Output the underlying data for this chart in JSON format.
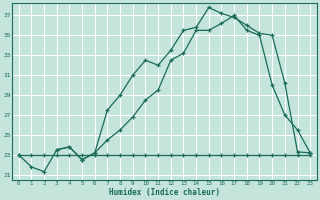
{
  "xlabel": "Humidex (Indice chaleur)",
  "bg_color": "#c4e4dc",
  "line_color": "#1a6b5a",
  "grid_color": "#ffffff",
  "xlim": [
    -0.5,
    23.5
  ],
  "ylim": [
    20.5,
    38.2
  ],
  "xticks": [
    0,
    1,
    2,
    3,
    4,
    5,
    6,
    7,
    8,
    9,
    10,
    11,
    12,
    13,
    14,
    15,
    16,
    17,
    18,
    19,
    20,
    21,
    22,
    23
  ],
  "yticks": [
    21,
    23,
    25,
    27,
    29,
    31,
    33,
    35,
    37
  ],
  "line_flat_x": [
    0,
    1,
    2,
    3,
    4,
    5,
    6,
    7,
    8,
    9,
    10,
    11,
    12,
    13,
    14,
    15,
    16,
    17,
    18,
    19,
    20,
    21,
    22,
    23
  ],
  "line_flat_y": [
    23,
    23,
    23,
    23,
    23,
    23,
    23,
    23,
    23,
    23,
    23,
    23,
    23,
    23,
    23,
    23,
    23,
    23,
    23,
    23,
    23,
    23,
    23,
    23
  ],
  "line_main_x": [
    0,
    1,
    2,
    3,
    4,
    5,
    6,
    7,
    8,
    9,
    10,
    11,
    12,
    13,
    14,
    15,
    16,
    17,
    18,
    19,
    20,
    21,
    22,
    23
  ],
  "line_main_y": [
    23,
    21.8,
    21.3,
    23.5,
    23.8,
    22.5,
    23.2,
    24.5,
    25.5,
    26.8,
    28.5,
    29.5,
    32.5,
    33.2,
    35.5,
    35.5,
    36.2,
    37.0,
    35.5,
    35.0,
    30.0,
    27.0,
    25.5,
    23.2
  ],
  "line_top_x": [
    3,
    4,
    5,
    6,
    7,
    8,
    9,
    10,
    11,
    12,
    13,
    14,
    15,
    16,
    17,
    18,
    19,
    20,
    21,
    22,
    23
  ],
  "line_top_y": [
    23.5,
    23.8,
    22.5,
    23.2,
    27.5,
    29.0,
    31.0,
    32.5,
    32.0,
    33.5,
    35.5,
    35.8,
    37.8,
    37.2,
    36.8,
    36.0,
    35.2,
    35.0,
    30.2,
    23.3,
    23.2
  ]
}
